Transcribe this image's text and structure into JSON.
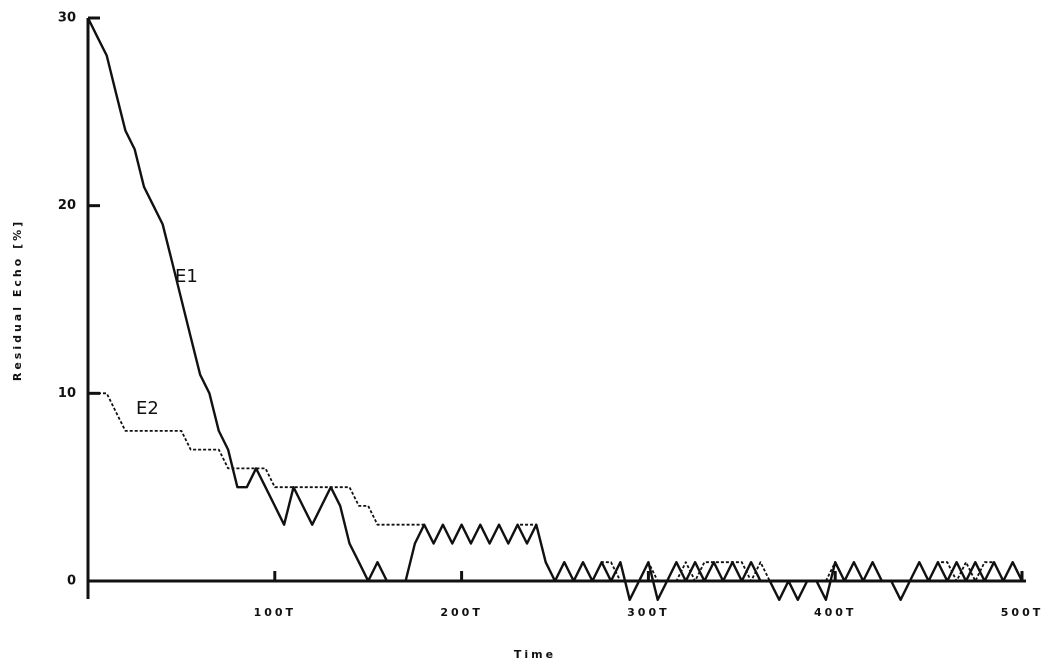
{
  "chart_data": {
    "type": "line",
    "xlabel": "Time",
    "ylabel": "Residual Echo [%]",
    "xlim": [
      0,
      500
    ],
    "ylim": [
      0,
      30
    ],
    "xticks": [
      {
        "value": 100,
        "label": "100T"
      },
      {
        "value": 200,
        "label": "200T"
      },
      {
        "value": 300,
        "label": "300T"
      },
      {
        "value": 400,
        "label": "400T"
      },
      {
        "value": 500,
        "label": "500T"
      }
    ],
    "yticks": [
      0,
      10,
      20,
      30
    ],
    "x": [
      0,
      5,
      10,
      15,
      20,
      25,
      30,
      35,
      40,
      45,
      50,
      55,
      60,
      65,
      70,
      75,
      80,
      85,
      90,
      95,
      100,
      105,
      110,
      115,
      120,
      125,
      130,
      135,
      140,
      145,
      150,
      155,
      160,
      165,
      170,
      175,
      180,
      185,
      190,
      195,
      200,
      205,
      210,
      215,
      220,
      225,
      230,
      235,
      240,
      245,
      250,
      255,
      260,
      265,
      270,
      275,
      280,
      285,
      290,
      295,
      300,
      305,
      310,
      315,
      320,
      325,
      330,
      335,
      340,
      345,
      350,
      355,
      360,
      365,
      370,
      375,
      380,
      385,
      390,
      395,
      400,
      405,
      410,
      415,
      420,
      425,
      430,
      435,
      440,
      445,
      450,
      455,
      460,
      465,
      470,
      475,
      480,
      485,
      490,
      495,
      500
    ],
    "series": [
      {
        "name": "E1",
        "color": "#111111",
        "dash": false,
        "values": [
          30,
          29,
          28,
          26,
          24,
          23,
          21,
          20,
          19,
          17,
          15,
          13,
          11,
          10,
          8,
          7,
          5,
          5,
          6,
          5,
          4,
          3,
          5,
          4,
          3,
          4,
          5,
          4,
          2,
          1,
          0,
          1,
          0,
          0,
          0,
          2,
          3,
          2,
          3,
          2,
          3,
          2,
          3,
          2,
          3,
          2,
          3,
          2,
          3,
          1,
          0,
          1,
          0,
          1,
          0,
          1,
          0,
          1,
          -1,
          0,
          1,
          -1,
          0,
          1,
          0,
          1,
          0,
          1,
          0,
          1,
          0,
          1,
          0,
          0,
          -1,
          0,
          -1,
          0,
          0,
          -1,
          1,
          0,
          1,
          0,
          1,
          0,
          0,
          -1,
          0,
          1,
          0,
          1,
          0,
          1,
          0,
          1,
          0,
          1,
          0,
          1,
          0
        ]
      },
      {
        "name": "E2",
        "color": "#111111",
        "dash": true,
        "values": [
          10,
          10,
          10,
          9,
          8,
          8,
          8,
          8,
          8,
          8,
          8,
          7,
          7,
          7,
          7,
          6,
          6,
          6,
          6,
          6,
          5,
          5,
          5,
          5,
          5,
          5,
          5,
          5,
          5,
          4,
          4,
          3,
          3,
          3,
          3,
          3,
          3,
          2,
          3,
          2,
          3,
          2,
          3,
          2,
          3,
          2,
          3,
          3,
          3,
          1,
          0,
          1,
          0,
          1,
          0,
          1,
          1,
          0,
          0,
          0,
          1,
          0,
          0,
          0,
          1,
          0,
          1,
          1,
          1,
          1,
          1,
          0,
          1,
          0,
          0,
          0,
          0,
          0,
          0,
          0,
          1,
          0,
          1,
          0,
          1,
          0,
          0,
          0,
          0,
          1,
          0,
          1,
          1,
          0,
          1,
          0,
          1,
          1,
          0,
          1,
          0
        ]
      }
    ]
  }
}
